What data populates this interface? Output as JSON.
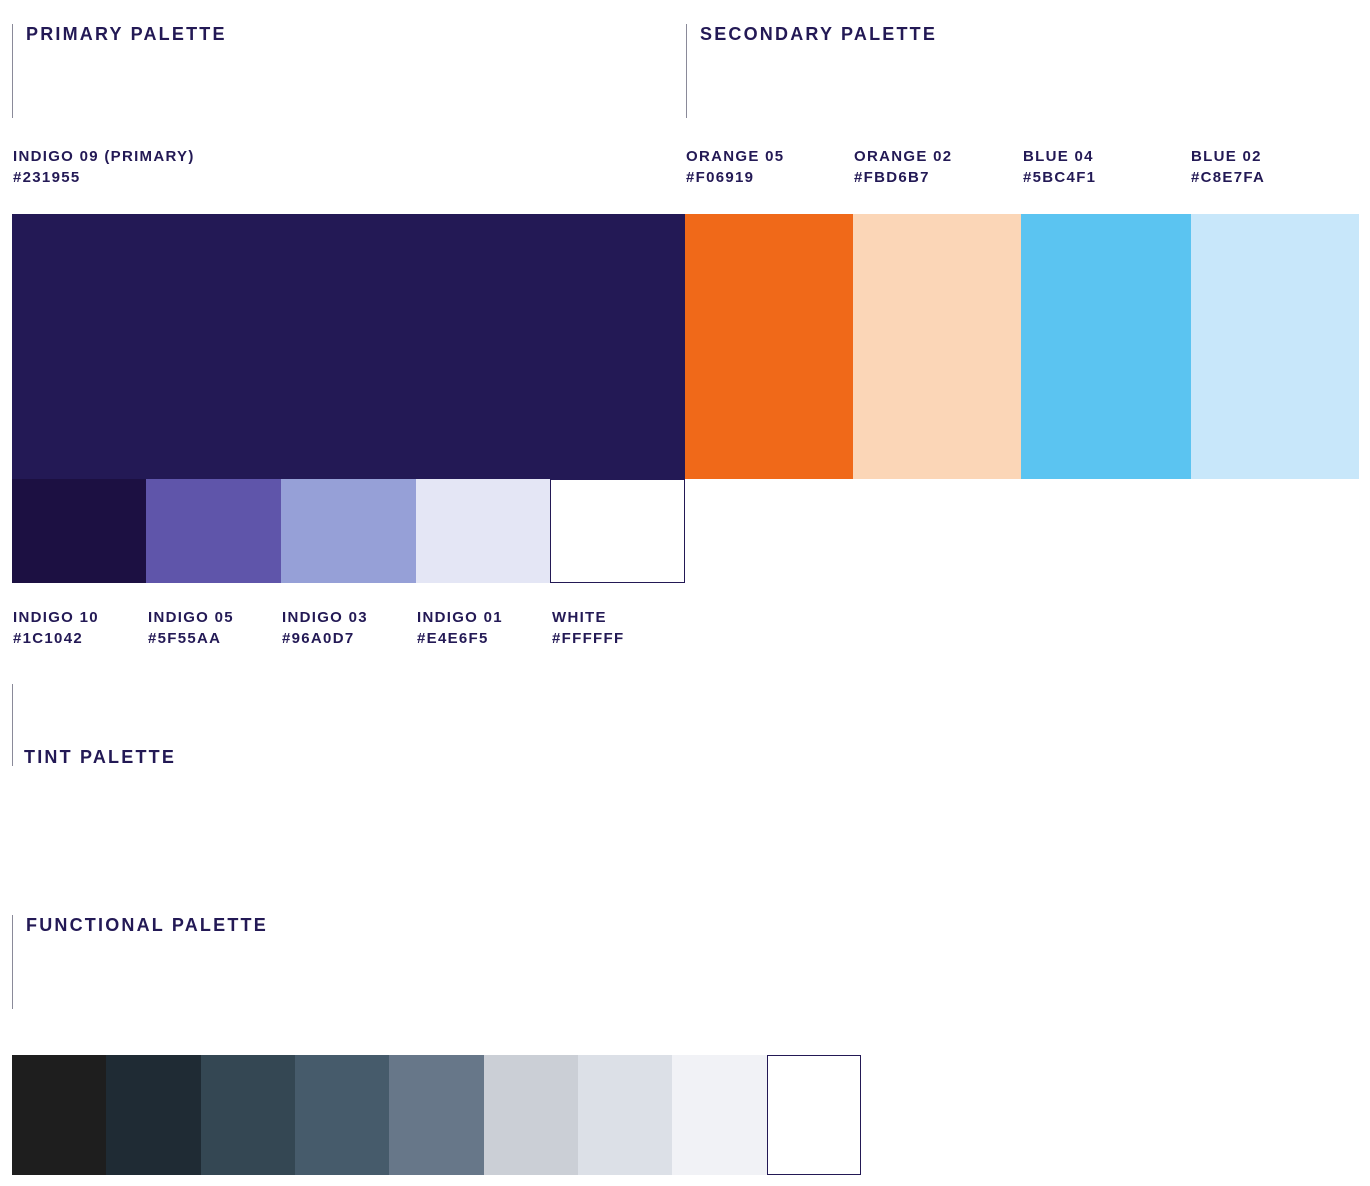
{
  "primary": {
    "title": "PRIMARY PALETTE",
    "main": {
      "name": "INDIGO 09 (PRIMARY)",
      "hex": "#231955",
      "color": "#231955"
    },
    "shades": [
      {
        "name": "INDIGO 10",
        "hex": "#1C1042",
        "color": "#1C1042"
      },
      {
        "name": "INDIGO 05",
        "hex": "#5F55AA",
        "color": "#5F55AA"
      },
      {
        "name": "INDIGO 03",
        "hex": "#96A0D7",
        "color": "#96A0D7"
      },
      {
        "name": "INDIGO 01",
        "hex": "#E4E6F5",
        "color": "#E4E6F5"
      },
      {
        "name": "WHITE",
        "hex": "#FFFFFF",
        "color": "#FFFFFF"
      }
    ]
  },
  "secondary": {
    "title": "SECONDARY PALETTE",
    "colors": [
      {
        "name": "ORANGE 05",
        "hex": "#F06919",
        "color": "#F06919"
      },
      {
        "name": "ORANGE 02",
        "hex": "#FBD6B7",
        "color": "#FBD6B7"
      },
      {
        "name": "BLUE 04",
        "hex": "#5BC4F1",
        "color": "#5BC4F1"
      },
      {
        "name": "BLUE 02",
        "hex": "#C8E7FA",
        "color": "#C8E7FA"
      }
    ]
  },
  "tint": {
    "title": "TINT PALETTE"
  },
  "functional": {
    "title": "FUNCTIONAL PALETTE",
    "colors": [
      "#1E1E1E",
      "#1F2B34",
      "#344753",
      "#465B6B",
      "#677789",
      "#CBCFD6",
      "#DCE0E7",
      "#F1F2F6",
      "#FFFFFF"
    ]
  }
}
